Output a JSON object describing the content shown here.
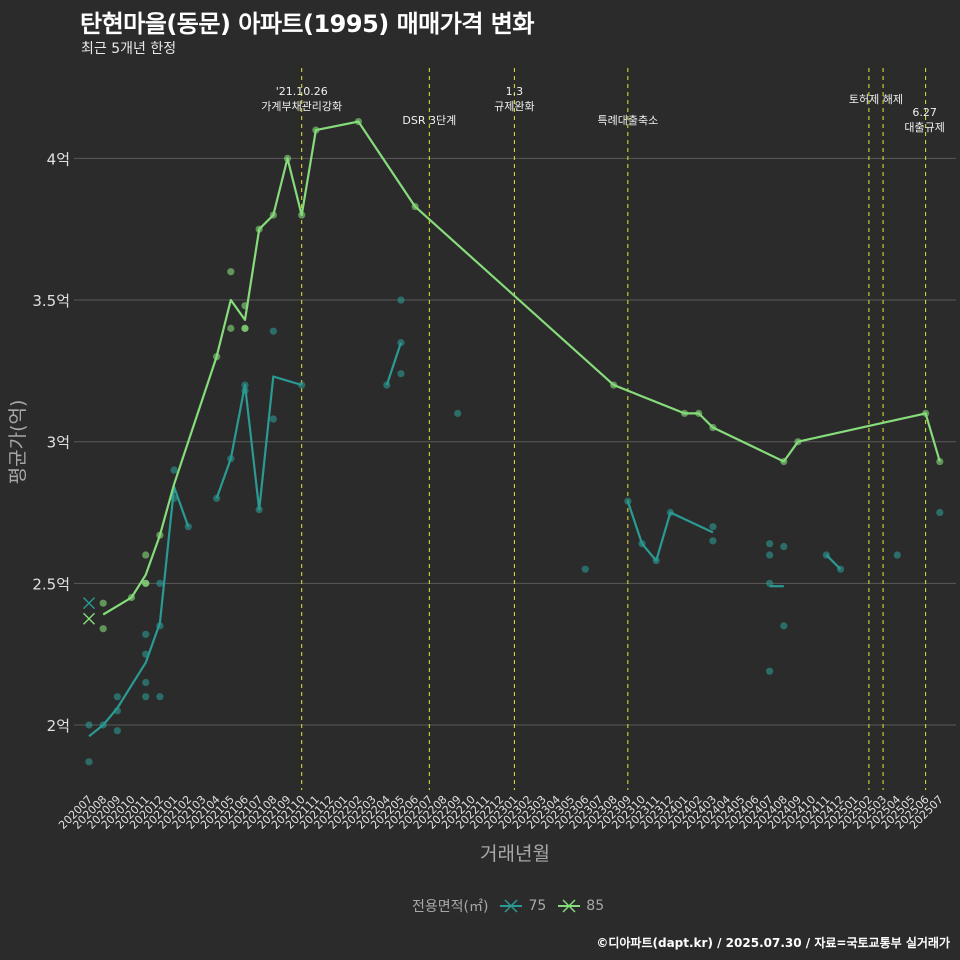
{
  "title": "탄현마을(동문) 아파트(1995) 매매가격 변화",
  "subtitle": "최근 5개년 한정",
  "caption": "©디아파트(dapt.kr) / 2025.07.30 / 자료=국토교통부 실거래가",
  "legend": {
    "title": "전용면적(㎡)",
    "items": [
      {
        "label": "75",
        "color": "#2a9a93"
      },
      {
        "label": "85",
        "color": "#86dc7a"
      }
    ]
  },
  "colors": {
    "background": "#2b2b2b",
    "grid": "#5a5a5a",
    "event_line": "#e6e62e",
    "axis_text": "#a8a8a8",
    "tick_text": "#e0e0e0"
  },
  "chart_data": {
    "type": "line",
    "title": "탄현마을(동문) 아파트(1995) 매매가격 변화",
    "xlabel": "거래년월",
    "ylabel": "평균가(억)",
    "ylim": [
      1.77,
      4.35
    ],
    "y_ticks": [
      {
        "value": 2.0,
        "label": "2억"
      },
      {
        "value": 2.5,
        "label": "2.5억"
      },
      {
        "value": 3.0,
        "label": "3억"
      },
      {
        "value": 3.5,
        "label": "3.5억"
      },
      {
        "value": 4.0,
        "label": "4억"
      }
    ],
    "x_categories": [
      "202007",
      "202008",
      "202009",
      "202010",
      "202011",
      "202012",
      "202101",
      "202102",
      "202103",
      "202104",
      "202105",
      "202106",
      "202107",
      "202108",
      "202109",
      "202110",
      "202111",
      "202112",
      "202201",
      "202202",
      "202203",
      "202204",
      "202205",
      "202206",
      "202207",
      "202208",
      "202209",
      "202210",
      "202211",
      "202212",
      "202301",
      "202302",
      "202303",
      "202304",
      "202305",
      "202306",
      "202307",
      "202308",
      "202309",
      "202310",
      "202311",
      "202312",
      "202401",
      "202402",
      "202403",
      "202404",
      "202405",
      "202406",
      "202407",
      "202408",
      "202409",
      "202410",
      "202411",
      "202412",
      "202501",
      "202502",
      "202503",
      "202504",
      "202505",
      "202506",
      "202507"
    ],
    "events": [
      {
        "x": "202110",
        "labels": [
          "'21.10.26",
          "가계부채관리강화"
        ],
        "level": 0
      },
      {
        "x": "202207",
        "labels": [
          "DSR 3단계"
        ],
        "level": 2
      },
      {
        "x": "202301",
        "labels": [
          "1.3",
          "규제완화"
        ],
        "level": 0
      },
      {
        "x": "202309",
        "labels": [
          "특례대출축소"
        ],
        "level": 2
      },
      {
        "x": "202502",
        "labels": [
          "토허제 해제"
        ],
        "level": 1,
        "anchor": "middle-between"
      },
      {
        "x": "202503",
        "labels": [],
        "level": 1
      },
      {
        "x": "202506",
        "labels": [
          "6.27",
          "대출규제"
        ],
        "level": 3
      }
    ],
    "series": [
      {
        "name": "75",
        "color": "#2a9a93",
        "line_segments": [
          [
            [
              "202007",
              1.96
            ],
            [
              "202008",
              2.0
            ],
            [
              "202009",
              2.06
            ],
            [
              "202010",
              2.14
            ],
            [
              "202011",
              2.22
            ],
            [
              "202012",
              2.36
            ],
            [
              "202101",
              2.84
            ],
            [
              "202102",
              2.7
            ]
          ],
          [
            [
              "202104",
              2.8
            ],
            [
              "202105",
              2.94
            ],
            [
              "202106",
              3.2
            ],
            [
              "202107",
              2.76
            ],
            [
              "202108",
              3.23
            ],
            [
              "202110",
              3.2
            ]
          ],
          [
            [
              "202204",
              3.2
            ],
            [
              "202205",
              3.35
            ]
          ],
          [
            [
              "202309",
              2.79
            ],
            [
              "202310",
              2.64
            ],
            [
              "202311",
              2.58
            ],
            [
              "202312",
              2.75
            ],
            [
              "202403",
              2.68
            ]
          ],
          [
            [
              "202407",
              2.49
            ],
            [
              "202408",
              2.49
            ]
          ],
          [
            [
              "202411",
              2.6
            ],
            [
              "202412",
              2.55
            ]
          ]
        ],
        "points": [
          [
            "202007",
            2.0
          ],
          [
            "202007",
            1.87
          ],
          [
            "202008",
            2.0
          ],
          [
            "202009",
            2.1
          ],
          [
            "202009",
            2.05
          ],
          [
            "202009",
            1.98
          ],
          [
            "202011",
            2.32
          ],
          [
            "202011",
            2.25
          ],
          [
            "202011",
            2.15
          ],
          [
            "202011",
            2.1
          ],
          [
            "202012",
            2.5
          ],
          [
            "202012",
            2.35
          ],
          [
            "202012",
            2.1
          ],
          [
            "202101",
            2.9
          ],
          [
            "202101",
            2.8
          ],
          [
            "202102",
            2.7
          ],
          [
            "202104",
            2.8
          ],
          [
            "202105",
            2.94
          ],
          [
            "202106",
            3.2
          ],
          [
            "202106",
            3.18
          ],
          [
            "202107",
            2.76
          ],
          [
            "202108",
            3.39
          ],
          [
            "202108",
            3.08
          ],
          [
            "202110",
            3.2
          ],
          [
            "202204",
            3.2
          ],
          [
            "202205",
            3.5
          ],
          [
            "202205",
            3.35
          ],
          [
            "202205",
            3.24
          ],
          [
            "202209",
            3.1
          ],
          [
            "202306",
            2.55
          ],
          [
            "202309",
            2.79
          ],
          [
            "202310",
            2.64
          ],
          [
            "202311",
            2.58
          ],
          [
            "202312",
            2.75
          ],
          [
            "202403",
            2.7
          ],
          [
            "202403",
            2.65
          ],
          [
            "202407",
            2.64
          ],
          [
            "202407",
            2.6
          ],
          [
            "202407",
            2.5
          ],
          [
            "202407",
            2.19
          ],
          [
            "202408",
            2.63
          ],
          [
            "202408",
            2.35
          ],
          [
            "202411",
            2.6
          ],
          [
            "202412",
            2.55
          ],
          [
            "202504",
            2.6
          ],
          [
            "202507",
            2.75
          ]
        ],
        "cross_points": [
          [
            "202007",
            2.43
          ]
        ]
      },
      {
        "name": "85",
        "color": "#86dc7a",
        "line_segments": [
          [
            [
              "202008",
              2.39
            ],
            [
              "202010",
              2.45
            ],
            [
              "202011",
              2.53
            ],
            [
              "202012",
              2.67
            ],
            [
              "202101",
              2.85
            ],
            [
              "202104",
              3.3
            ],
            [
              "202105",
              3.5
            ],
            [
              "202106",
              3.43
            ],
            [
              "202107",
              3.75
            ],
            [
              "202108",
              3.8
            ],
            [
              "202109",
              4.0
            ],
            [
              "202110",
              3.8
            ],
            [
              "202111",
              4.1
            ],
            [
              "202202",
              4.13
            ],
            [
              "202206",
              3.83
            ],
            [
              "202308",
              3.2
            ],
            [
              "202401",
              3.1
            ],
            [
              "202402",
              3.1
            ],
            [
              "202403",
              3.05
            ],
            [
              "202408",
              2.93
            ],
            [
              "202409",
              3.0
            ],
            [
              "202506",
              3.1
            ],
            [
              "202507",
              2.93
            ]
          ]
        ],
        "points": [
          [
            "202008",
            2.43
          ],
          [
            "202008",
            2.34
          ],
          [
            "202010",
            2.45
          ],
          [
            "202011",
            2.6
          ],
          [
            "202011",
            2.5
          ],
          [
            "202011",
            2.5
          ],
          [
            "202012",
            2.67
          ],
          [
            "202104",
            3.3
          ],
          [
            "202105",
            3.6
          ],
          [
            "202105",
            3.4
          ],
          [
            "202106",
            3.48
          ],
          [
            "202106",
            3.4
          ],
          [
            "202106",
            3.4
          ],
          [
            "202107",
            3.75
          ],
          [
            "202108",
            3.8
          ],
          [
            "202109",
            4.0
          ],
          [
            "202110",
            3.8
          ],
          [
            "202111",
            4.1
          ],
          [
            "202202",
            4.13
          ],
          [
            "202206",
            3.83
          ],
          [
            "202308",
            3.2
          ],
          [
            "202401",
            3.1
          ],
          [
            "202402",
            3.1
          ],
          [
            "202403",
            3.05
          ],
          [
            "202408",
            2.93
          ],
          [
            "202409",
            3.0
          ],
          [
            "202506",
            3.1
          ],
          [
            "202507",
            2.93
          ]
        ],
        "cross_points": [
          [
            "202007",
            2.375
          ]
        ]
      }
    ]
  }
}
